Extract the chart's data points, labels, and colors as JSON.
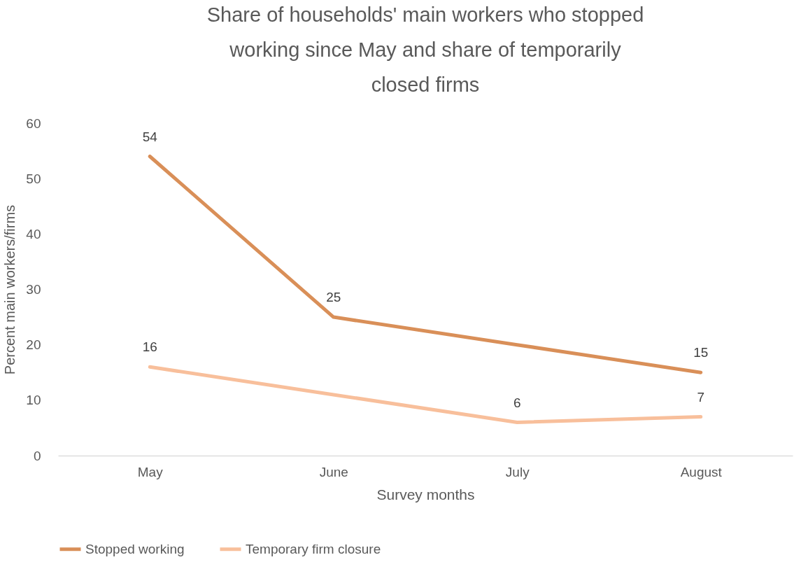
{
  "chart_data": {
    "type": "line",
    "title": "Share of households' main workers who stopped working since May and share of temporarily closed firms",
    "xlabel": "Survey months",
    "ylabel": "Percent main workers/firms",
    "categories": [
      "May",
      "June",
      "July",
      "August"
    ],
    "series": [
      {
        "name": "Stopped working",
        "color": "#d98f58",
        "values": [
          54,
          25,
          20,
          15
        ],
        "value_labels": [
          "54",
          "25",
          null,
          "15"
        ]
      },
      {
        "name": "Temporary firm closure",
        "color": "#f8bf9b",
        "values": [
          16,
          11,
          6,
          7
        ],
        "value_labels": [
          "16",
          null,
          "6",
          "7"
        ]
      }
    ],
    "ylim": [
      0,
      60
    ],
    "yticks": [
      0,
      10,
      20,
      30,
      40,
      50,
      60
    ],
    "grid": false,
    "legend": "bottom",
    "marker": "none",
    "line_style": "solid"
  }
}
